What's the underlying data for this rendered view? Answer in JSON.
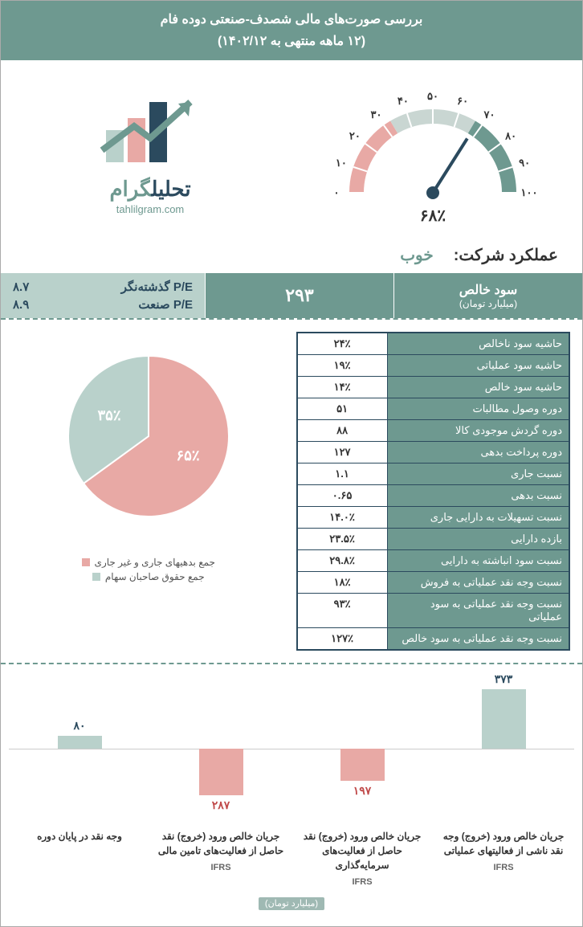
{
  "header": {
    "title": "بررسی صورت‌های مالی شصدف-صنعتی دوده فام",
    "subtitle": "(۱۲ ماهه منتهی به ۱۴۰۲/۱۲)"
  },
  "brand": {
    "name_main": "تحلیل",
    "name_accent": "گرام",
    "site": "tahlilgram.com",
    "logo_colors": [
      "#b9d1cb",
      "#e8a9a5",
      "#2b4a5e",
      "#6e9990"
    ]
  },
  "gauge": {
    "value": 68,
    "value_label": "۶۸٪",
    "ticks": [
      "۱۰۰",
      "۹۰",
      "۸۰",
      "۷۰",
      "۶۰",
      "۵۰",
      "۴۰",
      "۳۰",
      "۲۰",
      "۱۰",
      "۰"
    ],
    "arc_colors": {
      "low": "#e8a9a5",
      "mid": "#c9d6d2",
      "high": "#6e9990"
    },
    "needle_color": "#2b4a5e"
  },
  "performance": {
    "label": "عملکرد شرکت:",
    "value": "خوب",
    "value_color": "#6e9990"
  },
  "band": {
    "profit_label": "سود خالص",
    "profit_unit": "(میلیارد تومان)",
    "profit_value": "۲۹۳",
    "pe_trailing_label": "P/E گذشته‌نگر",
    "pe_trailing_value": "۸.۷",
    "pe_industry_label": "P/E صنعت",
    "pe_industry_value": "۸.۹"
  },
  "ratios": [
    {
      "name": "حاشیه سود ناخالص",
      "value": "۲۴٪"
    },
    {
      "name": "حاشیه سود عملیاتی",
      "value": "۱۹٪"
    },
    {
      "name": "حاشیه سود خالص",
      "value": "۱۴٪"
    },
    {
      "name": "دوره وصول مطالبات",
      "value": "۵۱"
    },
    {
      "name": "دوره گردش موجودی کالا",
      "value": "۸۸"
    },
    {
      "name": "دوره پرداخت بدهی",
      "value": "۱۲۷"
    },
    {
      "name": "نسبت جاری",
      "value": "۱.۱"
    },
    {
      "name": "نسبت بدهی",
      "value": "۰.۶۵"
    },
    {
      "name": "نسبت تسهیلات به دارایی جاری",
      "value": "۱۴.۰٪"
    },
    {
      "name": "بازده دارایی",
      "value": "۲۳.۵٪"
    },
    {
      "name": "نسبت سود انباشته به دارایی",
      "value": "۲۹.۸٪"
    },
    {
      "name": "نسبت وجه نقد عملیاتی به فروش",
      "value": "۱۸٪"
    },
    {
      "name": "نسبت وجه نقد عملیاتی به سود عملیاتی",
      "value": "۹۳٪"
    },
    {
      "name": "نسبت وجه نقد عملیاتی به سود خالص",
      "value": "۱۲۷٪"
    }
  ],
  "pie": {
    "slices": [
      {
        "label": "۶۵٪",
        "value": 65,
        "color": "#e8a9a5",
        "legend": "جمع بدهیهای جاری و غیر جاری"
      },
      {
        "label": "۳۵٪",
        "value": 35,
        "color": "#b9d1cb",
        "legend": "جمع حقوق صاحبان سهام"
      }
    ],
    "label_color": "#ffffff"
  },
  "cashflow": {
    "type": "bar",
    "unit": "(میلیارد تومان)",
    "axis_color": "#cccccc",
    "max_abs": 400,
    "bars": [
      {
        "label": "جریان خالص ورود (خروج) وجه نقد ناشی از فعالیتهای عملیاتی",
        "ifrs": "IFRS",
        "value": 373,
        "value_label": "۳۷۳",
        "color": "#b9d1cb",
        "text_color": "#2b4a5e"
      },
      {
        "label": "جریان خالص ورود (خروج) نقد حاصل از فعالیت‌های سرمایه‌گذاری",
        "ifrs": "IFRS",
        "value": -197,
        "value_label": "۱۹۷",
        "color": "#e8a9a5",
        "text_color": "#c04a4a"
      },
      {
        "label": "جریان خالص ورود (خروج) نقد حاصل از فعالیت‌های تامین مالی",
        "ifrs": "IFRS",
        "value": -287,
        "value_label": "۲۸۷",
        "color": "#e8a9a5",
        "text_color": "#c04a4a"
      },
      {
        "label": "وجه نقد در پایان دوره",
        "ifrs": "",
        "value": 80,
        "value_label": "۸۰",
        "color": "#b9d1cb",
        "text_color": "#2b4a5e"
      }
    ]
  }
}
